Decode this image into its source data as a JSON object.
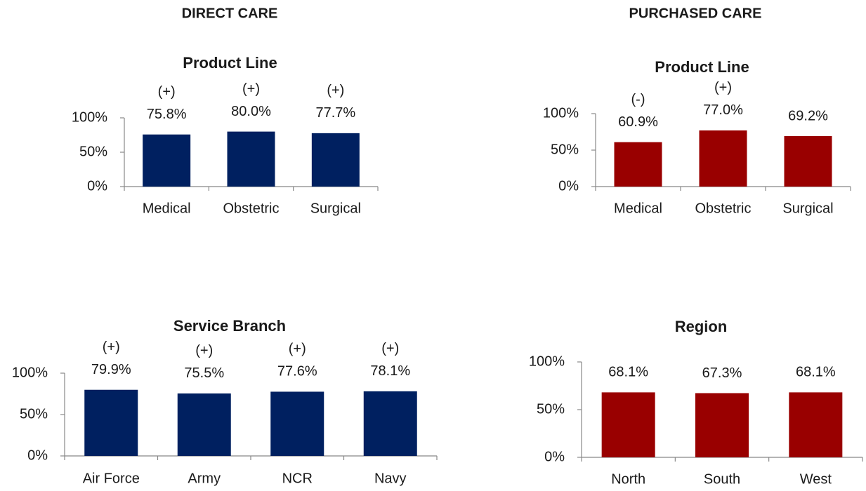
{
  "sections": [
    "DIRECT CARE",
    "PURCHASED CARE"
  ],
  "chart_data": [
    {
      "type": "bar",
      "title": "Product Line",
      "categories": [
        "Medical",
        "Obstetric",
        "Surgical"
      ],
      "values": [
        75.8,
        80.0,
        77.7
      ],
      "value_labels": [
        "75.8%",
        "80.0%",
        "77.7%"
      ],
      "annotations": [
        "(+)",
        "(+)",
        "(+)"
      ],
      "color": "#002060",
      "ylim": [
        0,
        100
      ],
      "yticks": [
        {
          "value": 0,
          "label": "0%"
        },
        {
          "value": 50,
          "label": "50%"
        },
        {
          "value": 100,
          "label": "100%"
        }
      ]
    },
    {
      "type": "bar",
      "title": "Product Line",
      "categories": [
        "Medical",
        "Obstetric",
        "Surgical"
      ],
      "values": [
        60.9,
        77.0,
        69.2
      ],
      "value_labels": [
        "60.9%",
        "77.0%",
        "69.2%"
      ],
      "annotations": [
        "(-)",
        "(+)",
        null
      ],
      "color": "#990000",
      "ylim": [
        0,
        100
      ],
      "yticks": [
        {
          "value": 0,
          "label": "0%"
        },
        {
          "value": 50,
          "label": "50%"
        },
        {
          "value": 100,
          "label": "100%"
        }
      ]
    },
    {
      "type": "bar",
      "title": "Service Branch",
      "categories": [
        "Air Force",
        "Army",
        "NCR",
        "Navy"
      ],
      "values": [
        79.9,
        75.5,
        77.6,
        78.1
      ],
      "value_labels": [
        "79.9%",
        "75.5%",
        "77.6%",
        "78.1%"
      ],
      "annotations": [
        "(+)",
        "(+)",
        "(+)",
        "(+)"
      ],
      "color": "#002060",
      "ylim": [
        0,
        100
      ],
      "yticks": [
        {
          "value": 0,
          "label": "0%"
        },
        {
          "value": 50,
          "label": "50%"
        },
        {
          "value": 100,
          "label": "100%"
        }
      ]
    },
    {
      "type": "bar",
      "title": "Region",
      "categories": [
        "North",
        "South",
        "West"
      ],
      "values": [
        68.1,
        67.3,
        68.1
      ],
      "value_labels": [
        "68.1%",
        "67.3%",
        "68.1%"
      ],
      "color": "#990000",
      "ylim": [
        0,
        100
      ],
      "yticks": [
        {
          "value": 0,
          "label": "0%"
        },
        {
          "value": 50,
          "label": "50%"
        },
        {
          "value": 100,
          "label": "100%"
        }
      ]
    }
  ]
}
